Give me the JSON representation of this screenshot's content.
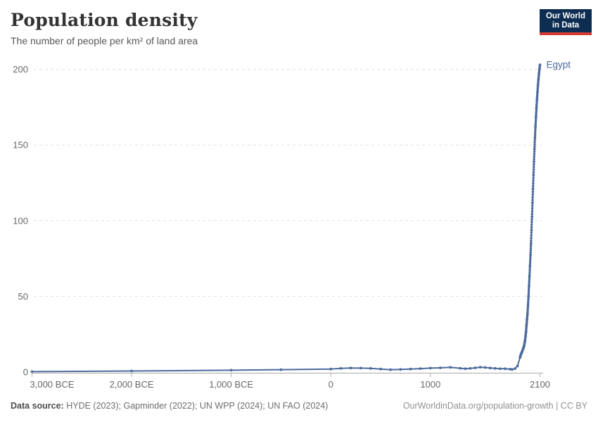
{
  "header": {
    "title": "Population density",
    "subtitle": "The number of people per km² of land area"
  },
  "logo": {
    "line1": "Our World",
    "line2": "in Data",
    "bg_color": "#0d2e52",
    "accent_color": "#d73c34",
    "text_color": "#ffffff"
  },
  "footer": {
    "source_label": "Data source:",
    "source_text": " HYDE (2023); Gapminder (2022); UN WPP (2024); UN FAO (2024)",
    "link_text": "OurWorldinData.org/population-growth | CC BY"
  },
  "chart_data": {
    "type": "line",
    "title": "Population density",
    "subtitle": "The number of people per km² of land area",
    "xlabel": "",
    "ylabel": "",
    "x_domain": [
      -3000,
      2100
    ],
    "ylim": [
      0,
      210
    ],
    "grid": "horizontal-dashed",
    "legend_position": "end-of-line-label",
    "x_ticks": [
      {
        "year": -3000,
        "label": "3,000 BCE"
      },
      {
        "year": -2000,
        "label": "2,000 BCE"
      },
      {
        "year": -1000,
        "label": "1,000 BCE"
      },
      {
        "year": 0,
        "label": "0"
      },
      {
        "year": 1000,
        "label": "1000"
      },
      {
        "year": 2100,
        "label": "2100"
      }
    ],
    "y_ticks": [
      0,
      50,
      100,
      150,
      200
    ],
    "series": [
      {
        "name": "Egypt",
        "entity_label": "Egypt",
        "color": "#4c6a9c",
        "unit": "people per km²",
        "points": [
          [
            -3000,
            0.3
          ],
          [
            -2000,
            0.7
          ],
          [
            -1000,
            1.2
          ],
          [
            -500,
            1.6
          ],
          [
            0,
            2.0
          ],
          [
            100,
            2.4
          ],
          [
            200,
            2.7
          ],
          [
            300,
            2.6
          ],
          [
            400,
            2.4
          ],
          [
            500,
            2.0
          ],
          [
            600,
            1.6
          ],
          [
            700,
            1.7
          ],
          [
            800,
            2.0
          ],
          [
            900,
            2.3
          ],
          [
            1000,
            2.6
          ],
          [
            1100,
            2.8
          ],
          [
            1200,
            3.1
          ],
          [
            1300,
            2.5
          ],
          [
            1350,
            2.2
          ],
          [
            1400,
            2.4
          ],
          [
            1450,
            2.8
          ],
          [
            1500,
            3.2
          ],
          [
            1550,
            3.0
          ],
          [
            1600,
            2.7
          ],
          [
            1650,
            2.4
          ],
          [
            1700,
            2.2
          ],
          [
            1750,
            2.2
          ],
          [
            1800,
            1.9
          ],
          [
            1820,
            1.7
          ],
          [
            1850,
            2.3
          ],
          [
            1875,
            4.0
          ],
          [
            1900,
            9.7
          ],
          [
            1910,
            11.9
          ],
          [
            1920,
            13.3
          ],
          [
            1930,
            15.2
          ],
          [
            1940,
            17.1
          ],
          [
            1950,
            20.7
          ],
          [
            1955,
            23.5
          ],
          [
            1960,
            26.6
          ],
          [
            1965,
            31.0
          ],
          [
            1970,
            34.8
          ],
          [
            1975,
            38.6
          ],
          [
            1980,
            44.0
          ],
          [
            1985,
            50.2
          ],
          [
            1990,
            56.8
          ],
          [
            1995,
            63.3
          ],
          [
            2000,
            70.3
          ],
          [
            2005,
            77.4
          ],
          [
            2010,
            84.9
          ],
          [
            2015,
            93.8
          ],
          [
            2020,
            102.6
          ],
          [
            2025,
            111.8
          ],
          [
            2030,
            121.0
          ],
          [
            2035,
            130.2
          ],
          [
            2040,
            139.0
          ],
          [
            2045,
            147.3
          ],
          [
            2050,
            155.0
          ],
          [
            2055,
            162.1
          ],
          [
            2060,
            168.6
          ],
          [
            2065,
            174.5
          ],
          [
            2070,
            180.0
          ],
          [
            2075,
            185.0
          ],
          [
            2080,
            189.6
          ],
          [
            2085,
            193.6
          ],
          [
            2090,
            197.1
          ],
          [
            2095,
            200.2
          ],
          [
            2100,
            203.0
          ]
        ]
      }
    ],
    "colors": {
      "gridline": "#e0e0e0",
      "axis_line": "#a8a8a8",
      "tick_mark": "#b0b0b0",
      "tick_label": "#666666"
    }
  }
}
